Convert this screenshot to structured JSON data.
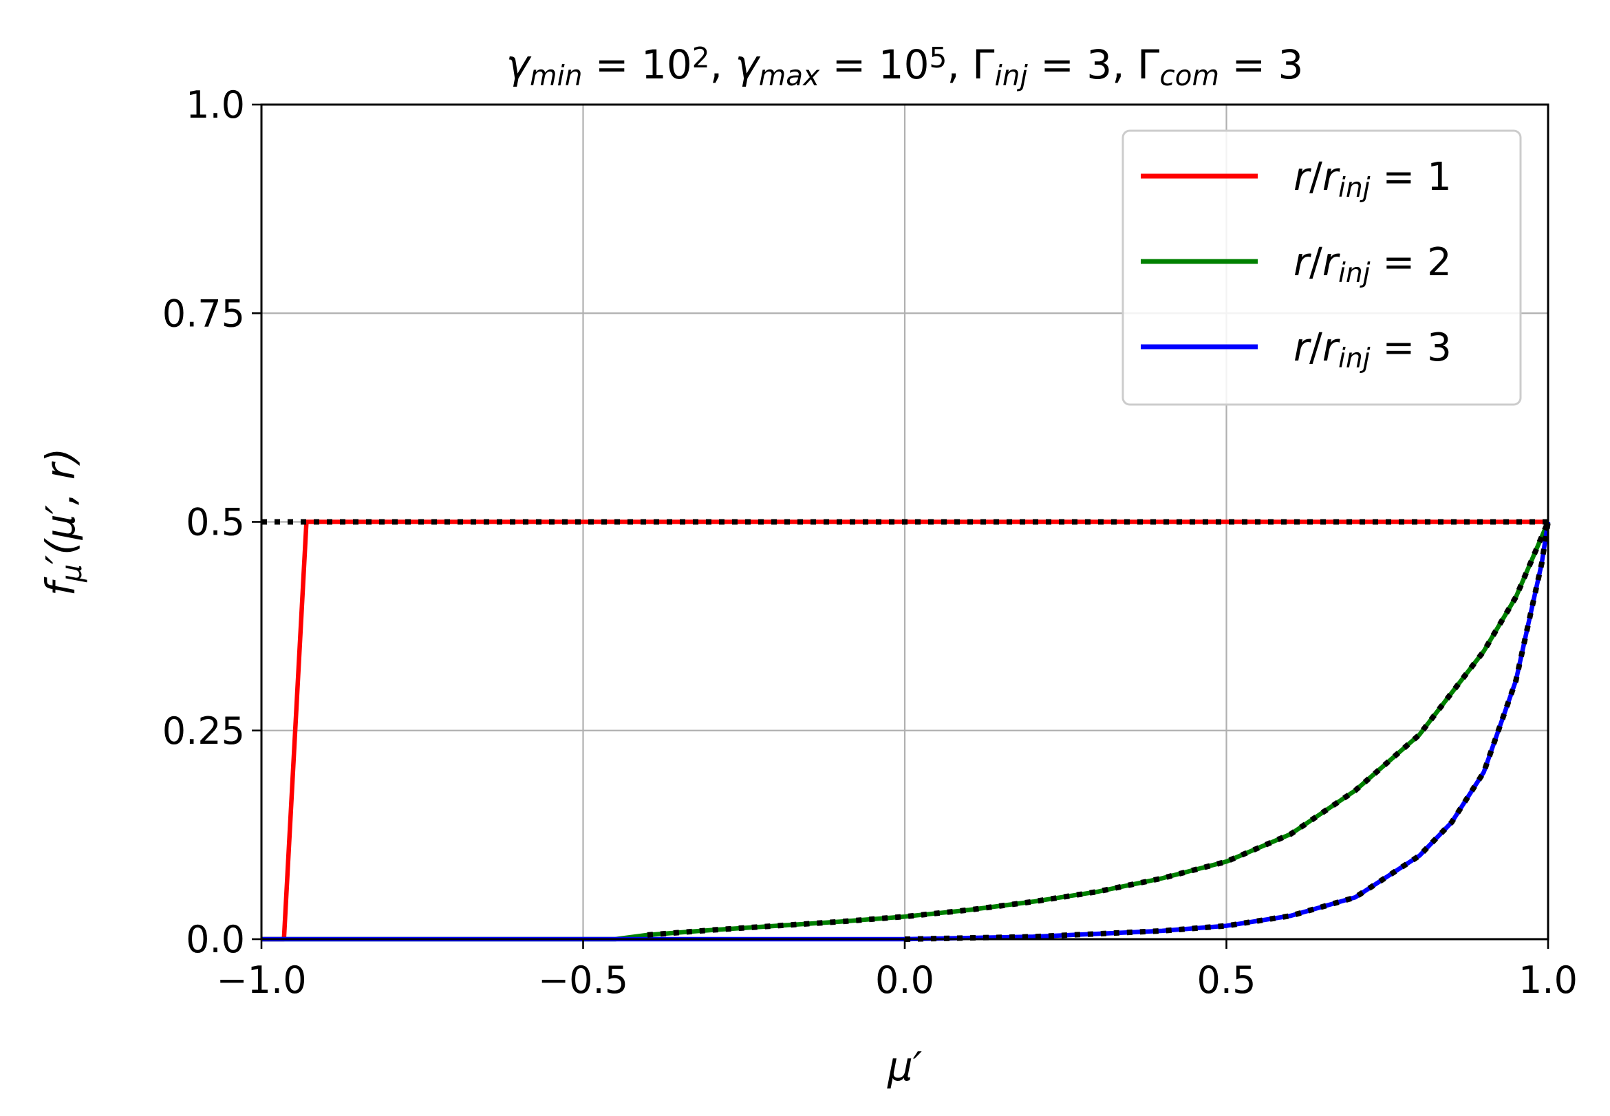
{
  "chart_data": {
    "type": "line",
    "title": {
      "parts": [
        {
          "t": "γ",
          "it": true
        },
        {
          "t": "min",
          "it": true,
          "sub": true
        },
        {
          "t": " = 10"
        },
        {
          "t": "2",
          "sup": true
        },
        {
          "t": ", "
        },
        {
          "t": "γ",
          "it": true
        },
        {
          "t": "max",
          "it": true,
          "sub": true
        },
        {
          "t": " = 10"
        },
        {
          "t": "5",
          "sup": true
        },
        {
          "t": ", Γ"
        },
        {
          "t": "inj",
          "it": true,
          "sub": true
        },
        {
          "t": " = 3, Γ"
        },
        {
          "t": "com",
          "it": true,
          "sub": true
        },
        {
          "t": " = 3"
        }
      ]
    },
    "xlabel": "μ′",
    "ylabel": {
      "parts": [
        {
          "t": "f",
          "it": true
        },
        {
          "t": "μ",
          "it": true,
          "sub": true
        },
        {
          "t": "′(μ′, r)",
          "it": true
        }
      ]
    },
    "xlim": [
      -1.0,
      1.0
    ],
    "ylim": [
      0.0,
      1.0
    ],
    "xticks": [
      -1.0,
      -0.5,
      0.0,
      0.5,
      1.0
    ],
    "xtick_labels": [
      "−1.0",
      "−0.5",
      "0.0",
      "0.5",
      "1.0"
    ],
    "yticks": [
      0.0,
      0.25,
      0.5,
      0.75,
      1.0
    ],
    "ytick_labels": [
      "0.0",
      "0.25",
      "0.5",
      "0.75",
      "1.0"
    ],
    "grid": true,
    "legend": {
      "placement": "upper-right",
      "entries": [
        {
          "parts": [
            {
              "t": "r",
              "it": true
            },
            {
              "t": "/"
            },
            {
              "t": "r",
              "it": true
            },
            {
              "t": "inj",
              "it": true,
              "sub": true
            },
            {
              "t": " = 1"
            }
          ],
          "color": "#ff0000"
        },
        {
          "parts": [
            {
              "t": "r",
              "it": true
            },
            {
              "t": "/"
            },
            {
              "t": "r",
              "it": true
            },
            {
              "t": "inj",
              "it": true,
              "sub": true
            },
            {
              "t": " = 2"
            }
          ],
          "color": "#008000"
        },
        {
          "parts": [
            {
              "t": "r",
              "it": true
            },
            {
              "t": "/"
            },
            {
              "t": "r",
              "it": true
            },
            {
              "t": "inj",
              "it": true,
              "sub": true
            },
            {
              "t": " = 3"
            }
          ],
          "color": "#0000ff"
        }
      ]
    },
    "series": [
      {
        "color": "#ff0000",
        "style": "solid",
        "x": [
          -1.0,
          -0.965,
          -0.93,
          1.0
        ],
        "y": [
          0.0,
          0.0,
          0.5,
          0.5
        ]
      },
      {
        "color": "#008000",
        "style": "solid",
        "x": [
          -1.0,
          -0.45,
          -0.4,
          -0.3,
          -0.2,
          -0.1,
          0.0,
          0.1,
          0.2,
          0.3,
          0.4,
          0.5,
          0.6,
          0.7,
          0.8,
          0.9,
          0.95,
          1.0
        ],
        "y": [
          0.0,
          0.0,
          0.005,
          0.011,
          0.016,
          0.021,
          0.027,
          0.035,
          0.045,
          0.057,
          0.073,
          0.093,
          0.126,
          0.178,
          0.245,
          0.345,
          0.41,
          0.5
        ]
      },
      {
        "color": "#0000ff",
        "style": "solid",
        "x": [
          -1.0,
          0.0,
          0.2,
          0.4,
          0.5,
          0.6,
          0.7,
          0.8,
          0.85,
          0.9,
          0.95,
          0.97,
          0.99,
          1.0
        ],
        "y": [
          0.0,
          0.0,
          0.003,
          0.01,
          0.016,
          0.028,
          0.05,
          0.1,
          0.14,
          0.2,
          0.31,
          0.38,
          0.45,
          0.5
        ]
      },
      {
        "color": "#000000",
        "style": "dotted",
        "x": [
          -1.0,
          1.0
        ],
        "y": [
          0.5,
          0.5
        ]
      },
      {
        "color": "#000000",
        "style": "dotted",
        "x": [
          -0.4,
          -0.3,
          -0.2,
          -0.1,
          0.0,
          0.1,
          0.2,
          0.3,
          0.4,
          0.5,
          0.6,
          0.7,
          0.8,
          0.9,
          0.95,
          1.0
        ],
        "y": [
          0.005,
          0.011,
          0.016,
          0.021,
          0.027,
          0.035,
          0.045,
          0.057,
          0.073,
          0.093,
          0.126,
          0.178,
          0.245,
          0.345,
          0.41,
          0.5
        ]
      },
      {
        "color": "#000000",
        "style": "dotted",
        "x": [
          0.0,
          0.2,
          0.4,
          0.5,
          0.6,
          0.7,
          0.8,
          0.85,
          0.9,
          0.95,
          0.97,
          0.99,
          1.0
        ],
        "y": [
          0.0,
          0.003,
          0.01,
          0.016,
          0.028,
          0.05,
          0.1,
          0.14,
          0.2,
          0.31,
          0.38,
          0.45,
          0.5
        ]
      }
    ]
  }
}
